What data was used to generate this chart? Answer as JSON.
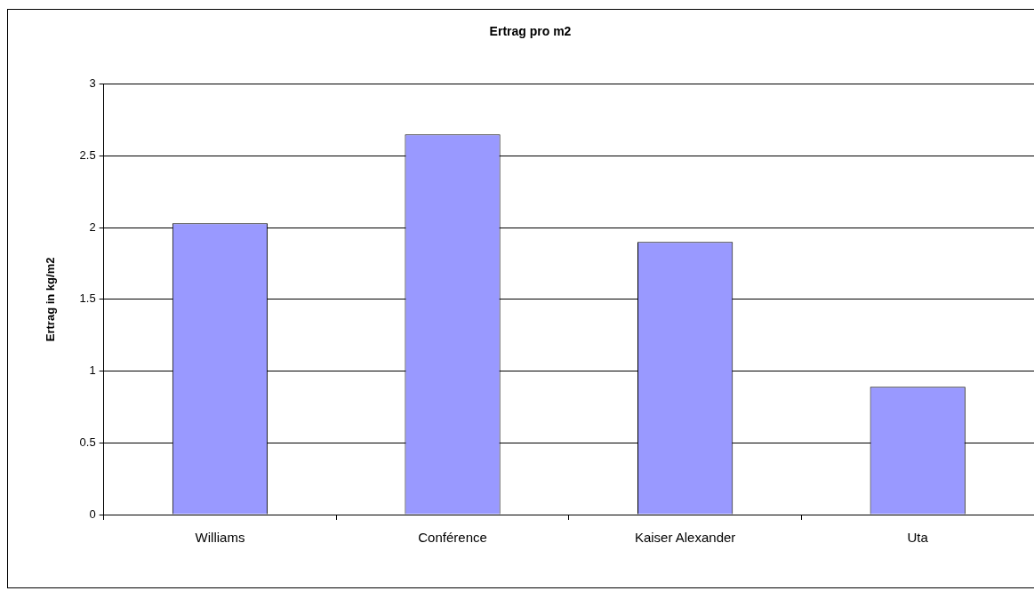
{
  "chart_data": {
    "type": "bar",
    "title": "Ertrag pro m2",
    "ylabel": "Ertrag in kg/m2",
    "categories": [
      "Williams",
      "Conférence",
      "Kaiser Alexander",
      "Uta"
    ],
    "values": [
      2.03,
      2.65,
      1.9,
      0.89
    ],
    "color": "#9999ff",
    "ylim": [
      0,
      3
    ],
    "yticks": [
      0,
      0.5,
      1,
      1.5,
      2,
      2.5,
      3
    ],
    "grid": "y",
    "legend": false
  }
}
